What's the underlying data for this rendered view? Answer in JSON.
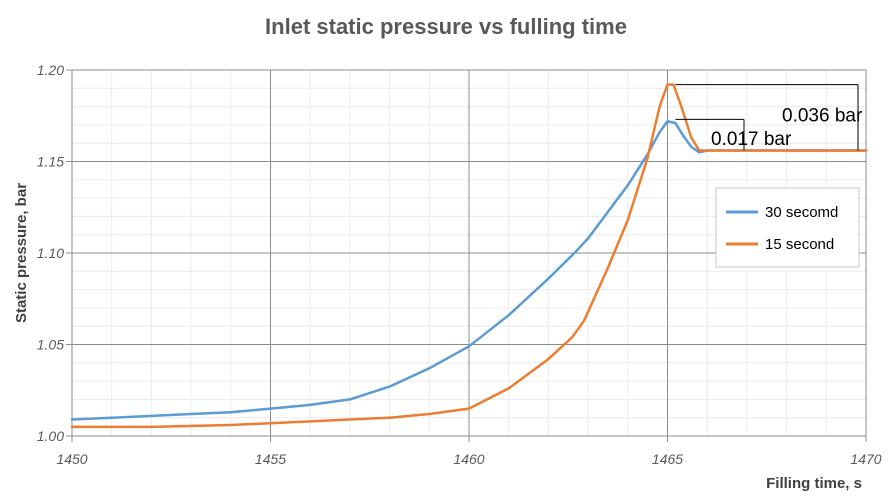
{
  "chart_data": {
    "type": "line",
    "title": "Inlet static pressure vs fulling time",
    "xlabel": "Filling time, s",
    "ylabel": "Static pressure, bar",
    "xlim": [
      1450,
      1470
    ],
    "ylim": [
      1.0,
      1.2
    ],
    "x_ticks": [
      1450,
      1455,
      1460,
      1465,
      1470
    ],
    "x_tick_labels": [
      "1450",
      "1455",
      "1460",
      "1465",
      "1470"
    ],
    "y_ticks": [
      1.0,
      1.05,
      1.1,
      1.15,
      1.2
    ],
    "y_tick_labels": [
      "1.00",
      "1.05",
      "1.10",
      "1.15",
      "1.20"
    ],
    "grid": true,
    "legend_position": "right",
    "series": [
      {
        "name": "30 secomd",
        "color": "#5b9bd5",
        "points": [
          [
            1450,
            1.009
          ],
          [
            1451,
            1.01
          ],
          [
            1452,
            1.011
          ],
          [
            1453,
            1.012
          ],
          [
            1454,
            1.013
          ],
          [
            1455,
            1.015
          ],
          [
            1456,
            1.017
          ],
          [
            1457,
            1.02
          ],
          [
            1458,
            1.027
          ],
          [
            1459,
            1.037
          ],
          [
            1460,
            1.049
          ],
          [
            1461,
            1.066
          ],
          [
            1462,
            1.086
          ],
          [
            1462.7,
            1.101
          ],
          [
            1463,
            1.108
          ],
          [
            1464,
            1.137
          ],
          [
            1464.5,
            1.154
          ],
          [
            1464.8,
            1.166
          ],
          [
            1465,
            1.172
          ],
          [
            1465.2,
            1.171
          ],
          [
            1465.4,
            1.164
          ],
          [
            1465.6,
            1.158
          ],
          [
            1465.8,
            1.155
          ],
          [
            1466,
            1.156
          ],
          [
            1467,
            1.156
          ],
          [
            1468,
            1.156
          ],
          [
            1469,
            1.156
          ],
          [
            1470,
            1.156
          ]
        ]
      },
      {
        "name": "15 second",
        "color": "#ed7d31",
        "points": [
          [
            1450,
            1.005
          ],
          [
            1452,
            1.005
          ],
          [
            1454,
            1.006
          ],
          [
            1456,
            1.008
          ],
          [
            1457,
            1.009
          ],
          [
            1458,
            1.01
          ],
          [
            1459,
            1.012
          ],
          [
            1460,
            1.015
          ],
          [
            1461,
            1.026
          ],
          [
            1462,
            1.042
          ],
          [
            1462.6,
            1.054
          ],
          [
            1462.9,
            1.063
          ],
          [
            1463.5,
            1.092
          ],
          [
            1464,
            1.118
          ],
          [
            1464.5,
            1.152
          ],
          [
            1464.8,
            1.18
          ],
          [
            1465,
            1.192
          ],
          [
            1465.15,
            1.192
          ],
          [
            1465.35,
            1.18
          ],
          [
            1465.6,
            1.163
          ],
          [
            1465.8,
            1.156
          ],
          [
            1466,
            1.156
          ],
          [
            1467,
            1.156
          ],
          [
            1468,
            1.156
          ],
          [
            1469,
            1.156
          ],
          [
            1470,
            1.156
          ]
        ]
      }
    ],
    "annotations": [
      {
        "text": "0.036 bar",
        "y_top": 1.192,
        "y_bottom": 1.156
      },
      {
        "text": "0.017 bar",
        "y_top": 1.173,
        "y_bottom": 1.156
      }
    ]
  }
}
